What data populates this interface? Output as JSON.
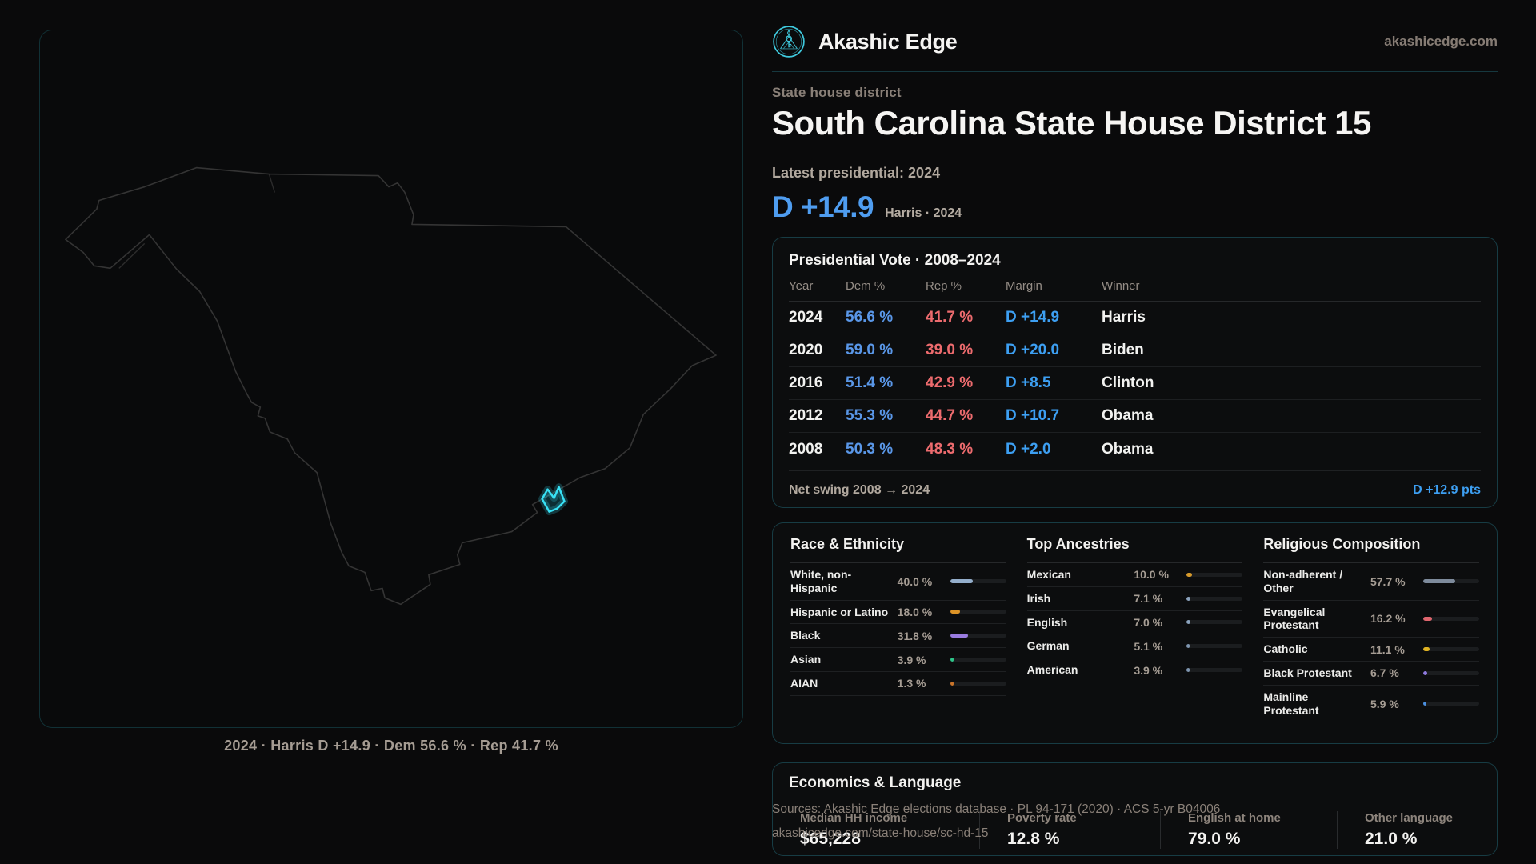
{
  "brand": {
    "name": "Akashic Edge",
    "domain": "akashicedge.com",
    "logo_icon": "akashic-sigil-icon"
  },
  "colors": {
    "accent_cyan": "#35dbee",
    "dem_blue": "#5a97e8",
    "rep_red": "#ed6b6e",
    "margin_blue": "#3d9ff2"
  },
  "header": {
    "kicker": "State house district",
    "title": "South Carolina State House District 15",
    "latest_label": "Latest presidential: 2024",
    "margin_value": "D +14.9",
    "margin_detail": "Harris · 2024"
  },
  "map": {
    "caption": "2024 · Harris D +14.9 · Dem 56.6 % · Rep 41.7 %",
    "highlight_color": "#38e1f5"
  },
  "presidential": {
    "title": "Presidential Vote · 2008–2024",
    "columns": [
      "Year",
      "Dem %",
      "Rep %",
      "Margin",
      "Winner"
    ],
    "rows": [
      {
        "year": "2024",
        "dem": "56.6 %",
        "rep": "41.7 %",
        "margin": "D +14.9",
        "winner": "Harris"
      },
      {
        "year": "2020",
        "dem": "59.0 %",
        "rep": "39.0 %",
        "margin": "D +20.0",
        "winner": "Biden"
      },
      {
        "year": "2016",
        "dem": "51.4 %",
        "rep": "42.9 %",
        "margin": "D +8.5",
        "winner": "Clinton"
      },
      {
        "year": "2012",
        "dem": "55.3 %",
        "rep": "44.7 %",
        "margin": "D +10.7",
        "winner": "Obama"
      },
      {
        "year": "2008",
        "dem": "50.3 %",
        "rep": "48.3 %",
        "margin": "D +2.0",
        "winner": "Obama"
      }
    ],
    "net_swing_label": "Net swing 2008 → 2024",
    "net_swing_value": "D +12.9 pts"
  },
  "panels": {
    "race": {
      "title": "Race & Ethnicity",
      "rows": [
        {
          "label": "White, non-Hispanic",
          "value": "40.0 %",
          "pct": 40.0,
          "color": "#94aecb"
        },
        {
          "label": "Hispanic or Latino",
          "value": "18.0 %",
          "pct": 18.0,
          "color": "#dd9427"
        },
        {
          "label": "Black",
          "value": "31.8 %",
          "pct": 31.8,
          "color": "#9a7ce0"
        },
        {
          "label": "Asian",
          "value": "3.9 %",
          "pct": 3.9,
          "color": "#2ec489"
        },
        {
          "label": "AIAN",
          "value": "1.3 %",
          "pct": 1.3,
          "color": "#c9742a"
        }
      ]
    },
    "ancestries": {
      "title": "Top Ancestries",
      "rows": [
        {
          "label": "Mexican",
          "value": "10.0 %",
          "pct": 10.0,
          "color": "#d79a2b"
        },
        {
          "label": "Irish",
          "value": "7.1 %",
          "pct": 7.1,
          "color": "#8ba3bd"
        },
        {
          "label": "English",
          "value": "7.0 %",
          "pct": 7.0,
          "color": "#8ba3bd"
        },
        {
          "label": "German",
          "value": "5.1 %",
          "pct": 5.1,
          "color": "#7f96b0"
        },
        {
          "label": "American",
          "value": "3.9 %",
          "pct": 3.9,
          "color": "#7f96b0"
        }
      ]
    },
    "religion": {
      "title": "Religious Composition",
      "rows": [
        {
          "label": "Non-adherent / Other",
          "value": "57.7 %",
          "pct": 57.7,
          "color": "#7e8b9c"
        },
        {
          "label": "Evangelical Protestant",
          "value": "16.2 %",
          "pct": 16.2,
          "color": "#e0666e"
        },
        {
          "label": "Catholic",
          "value": "11.1 %",
          "pct": 11.1,
          "color": "#e0b322"
        },
        {
          "label": "Black Protestant",
          "value": "6.7 %",
          "pct": 6.7,
          "color": "#8f7ae0"
        },
        {
          "label": "Mainline Protestant",
          "value": "5.9 %",
          "pct": 5.9,
          "color": "#4b8fe0"
        }
      ]
    }
  },
  "economics": {
    "title": "Economics & Language",
    "stats": [
      {
        "label": "Median HH income",
        "value": "$65,228"
      },
      {
        "label": "Poverty rate",
        "value": "12.8 %"
      },
      {
        "label": "English at home",
        "value": "79.0 %"
      },
      {
        "label": "Other language",
        "value": "21.0 %"
      }
    ]
  },
  "footer": {
    "line1": "Sources: Akashic Edge elections database · PL 94-171 (2020) · ACS 5-yr B04006",
    "line2": "akashicedge.com/state-house/sc-hd-15"
  }
}
